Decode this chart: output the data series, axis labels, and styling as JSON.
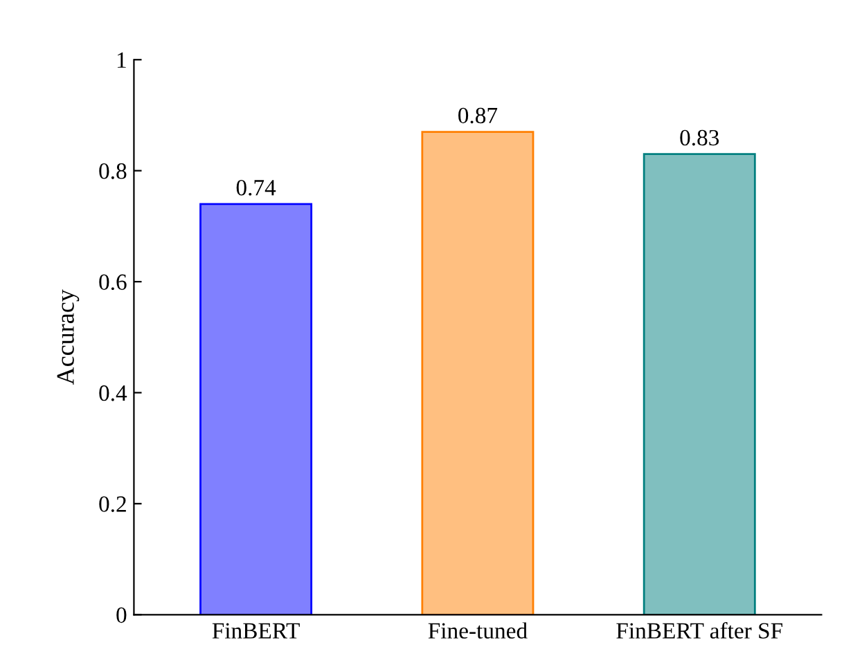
{
  "chart_data": {
    "type": "bar",
    "ylabel": "Accuracy",
    "categories": [
      "FinBERT",
      "Fine-tuned",
      "FinBERT after SF"
    ],
    "values": [
      0.74,
      0.87,
      0.83
    ],
    "colors": [
      "#8080ff",
      "#ffbf80",
      "#80bfbf"
    ],
    "ylim": [
      0,
      1
    ],
    "yticks": [
      0,
      0.2,
      0.4,
      0.6,
      0.8,
      1
    ],
    "data_labels": true,
    "grid": false
  }
}
